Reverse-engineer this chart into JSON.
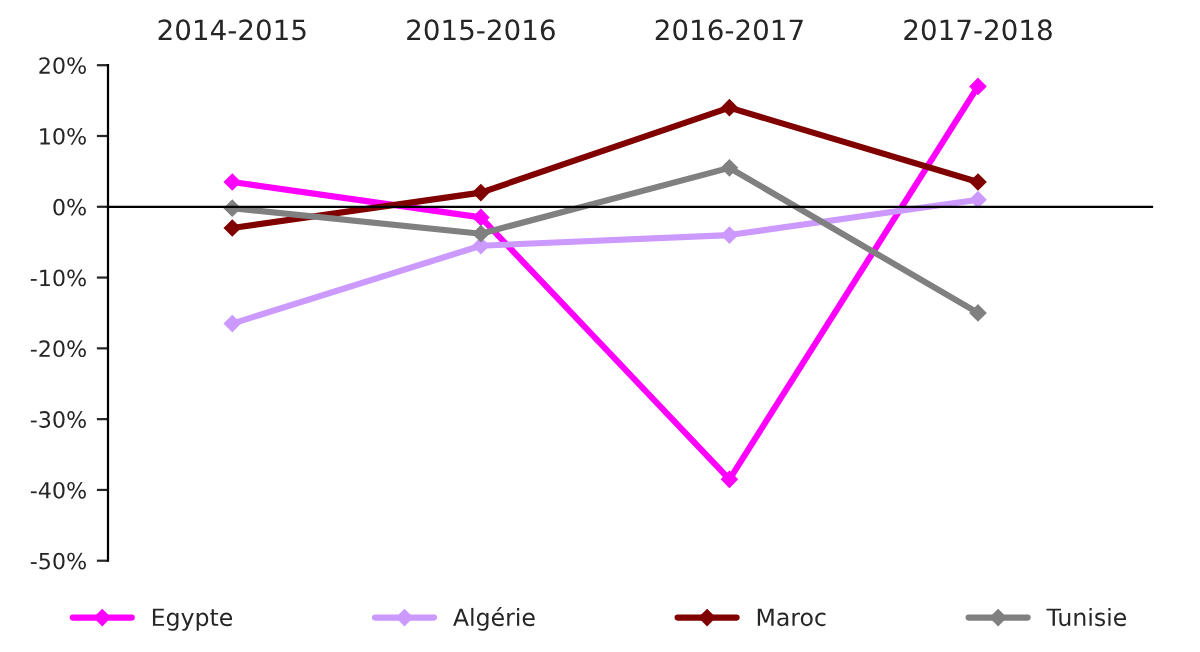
{
  "chart_data": {
    "type": "line",
    "categories": [
      "2014-2015",
      "2015-2016",
      "2016-2017",
      "2017-2018"
    ],
    "series": [
      {
        "name": "Egypte",
        "color": "#ff00ff",
        "values": [
          3.5,
          -1.5,
          -38.5,
          17
        ]
      },
      {
        "name": "Algérie",
        "color": "#cc99ff",
        "values": [
          -16.5,
          -5.5,
          -4,
          1
        ]
      },
      {
        "name": "Maroc",
        "color": "#800000",
        "values": [
          -3,
          2,
          14,
          3.5
        ]
      },
      {
        "name": "Tunisie",
        "color": "#808080",
        "values": [
          -0.2,
          -3.8,
          5.5,
          -15
        ]
      }
    ],
    "ylim": [
      -50,
      20
    ],
    "yticks": [
      {
        "value": -50,
        "label": "-50%"
      },
      {
        "value": -40,
        "label": "-40%"
      },
      {
        "value": -30,
        "label": "-30%"
      },
      {
        "value": -20,
        "label": "-20%"
      },
      {
        "value": -10,
        "label": "-10%"
      },
      {
        "value": 0,
        "label": "0%"
      },
      {
        "value": 10,
        "label": "10%"
      },
      {
        "value": 20,
        "label": "20%"
      }
    ],
    "marker": "diamond",
    "line_style": "solid",
    "legend": "bottom"
  }
}
